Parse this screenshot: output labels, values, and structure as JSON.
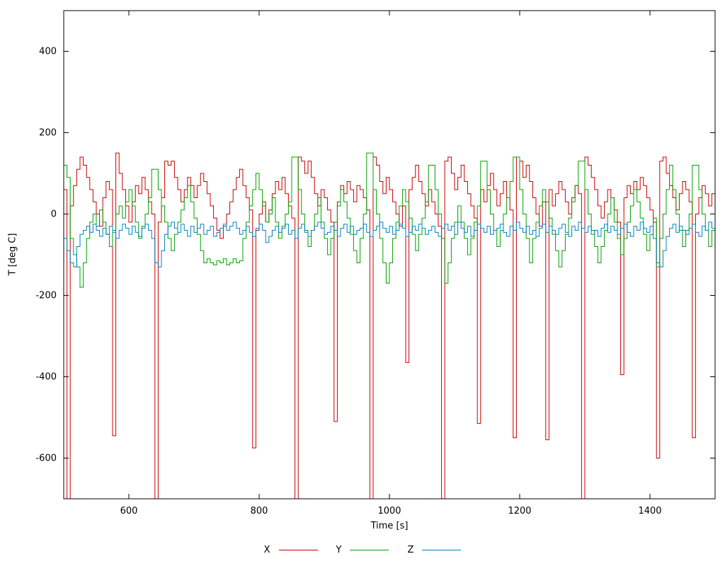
{
  "chart_data": {
    "type": "line",
    "style": "steps",
    "title": "",
    "xlabel": "Time [s]",
    "ylabel": "T [deg C]",
    "xlim": [
      500,
      1500
    ],
    "ylim": [
      -700,
      500
    ],
    "xticks": [
      600,
      800,
      1000,
      1200,
      1400
    ],
    "yticks": [
      -600,
      -400,
      -200,
      0,
      200,
      400
    ],
    "grid": false,
    "legend": {
      "position": "bottom",
      "entries": [
        "X",
        "Y",
        "Z"
      ]
    },
    "x_start": 500,
    "x_step": 5,
    "x_end": 1500,
    "series": [
      {
        "name": "X",
        "color": "#c80000",
        "values": [
          60,
          -750,
          20,
          70,
          110,
          140,
          120,
          90,
          60,
          30,
          0,
          -30,
          40,
          80,
          60,
          -545,
          150,
          100,
          60,
          20,
          -20,
          30,
          70,
          50,
          90,
          60,
          30,
          0,
          -750,
          -20,
          40,
          130,
          120,
          130,
          90,
          60,
          30,
          60,
          90,
          70,
          40,
          70,
          100,
          80,
          50,
          20,
          -10,
          -40,
          -60,
          -30,
          0,
          30,
          60,
          90,
          110,
          70,
          40,
          10,
          -575,
          -40,
          0,
          30,
          -20,
          10,
          50,
          80,
          60,
          90,
          50,
          20,
          -10,
          -750,
          140,
          130,
          100,
          130,
          90,
          50,
          20,
          60,
          40,
          10,
          -20,
          -510,
          30,
          70,
          50,
          80,
          60,
          30,
          70,
          60,
          40,
          10,
          -750,
          140,
          120,
          80,
          50,
          90,
          60,
          30,
          0,
          -30,
          20,
          -365,
          60,
          90,
          120,
          80,
          50,
          20,
          60,
          30,
          0,
          -30,
          -750,
          130,
          140,
          100,
          60,
          90,
          120,
          80,
          50,
          20,
          -10,
          -515,
          60,
          30,
          70,
          100,
          60,
          20,
          50,
          80,
          40,
          10,
          -550,
          140,
          130,
          90,
          120,
          80,
          40,
          0,
          -30,
          30,
          -555,
          60,
          20,
          50,
          80,
          60,
          30,
          0,
          40,
          70,
          50,
          -750,
          140,
          120,
          90,
          60,
          20,
          -10,
          30,
          60,
          40,
          10,
          -20,
          -395,
          40,
          70,
          50,
          80,
          60,
          90,
          70,
          40,
          10,
          -20,
          -600,
          130,
          140,
          100,
          70,
          40,
          10,
          50,
          80,
          60,
          30,
          -550,
          0,
          40,
          70,
          50,
          20,
          50,
          70
        ]
      },
      {
        "name": "Y",
        "color": "#00a000",
        "values": [
          120,
          90,
          -60,
          -100,
          -130,
          -180,
          -120,
          -60,
          -20,
          0,
          -30,
          10,
          -20,
          -50,
          -80,
          -40,
          0,
          20,
          -10,
          30,
          60,
          20,
          -20,
          -60,
          -30,
          0,
          40,
          110,
          110,
          60,
          20,
          -20,
          -60,
          -90,
          -50,
          -20,
          10,
          40,
          70,
          30,
          -10,
          -50,
          -90,
          -120,
          -110,
          -120,
          -125,
          -115,
          -120,
          -110,
          -125,
          -120,
          -110,
          -120,
          -115,
          -60,
          -20,
          20,
          60,
          100,
          60,
          20,
          -20,
          0,
          40,
          -20,
          -60,
          -30,
          0,
          30,
          140,
          140,
          60,
          0,
          -40,
          -80,
          -40,
          0,
          40,
          -20,
          -60,
          -100,
          -60,
          -20,
          20,
          60,
          30,
          -10,
          -50,
          -90,
          -120,
          -60,
          0,
          150,
          150,
          60,
          0,
          -60,
          -120,
          -170,
          -120,
          -60,
          -20,
          20,
          60,
          30,
          -10,
          -50,
          -90,
          -50,
          -10,
          30,
          120,
          120,
          60,
          0,
          -60,
          -170,
          -120,
          -60,
          -20,
          20,
          -20,
          -60,
          -100,
          -60,
          -20,
          20,
          130,
          130,
          60,
          0,
          -40,
          -80,
          -40,
          0,
          40,
          80,
          140,
          140,
          60,
          0,
          -60,
          -120,
          -60,
          -20,
          20,
          60,
          30,
          -10,
          -50,
          -90,
          -130,
          -90,
          -50,
          -10,
          30,
          70,
          130,
          130,
          60,
          0,
          -40,
          -80,
          -120,
          -80,
          -40,
          0,
          40,
          -20,
          -60,
          -100,
          -60,
          -20,
          20,
          60,
          30,
          -10,
          -50,
          -90,
          -50,
          -10,
          -130,
          -60,
          0,
          60,
          120,
          60,
          0,
          -40,
          -80,
          -40,
          0,
          120,
          120,
          60,
          0,
          -40,
          -80,
          -40,
          60
        ]
      },
      {
        "name": "Z",
        "color": "#0080c0",
        "values": [
          -60,
          -90,
          -120,
          -130,
          -80,
          -50,
          -40,
          -30,
          -45,
          -25,
          -40,
          -55,
          -35,
          -50,
          -30,
          -45,
          -60,
          -40,
          -25,
          -35,
          -50,
          -30,
          -45,
          -55,
          -35,
          -25,
          -40,
          -60,
          -120,
          -130,
          -90,
          -50,
          -30,
          -20,
          -35,
          -45,
          -25,
          -40,
          -55,
          -30,
          -45,
          -35,
          -25,
          -50,
          -40,
          -30,
          -55,
          -45,
          -35,
          -25,
          -40,
          -30,
          -20,
          -35,
          -50,
          -40,
          -30,
          -45,
          -55,
          -35,
          -25,
          -40,
          -70,
          -55,
          -40,
          -30,
          -45,
          -35,
          -25,
          -50,
          -40,
          -60,
          -35,
          -25,
          -45,
          -55,
          -40,
          -30,
          -20,
          -35,
          -50,
          -45,
          -30,
          -40,
          -55,
          -35,
          -25,
          -45,
          -30,
          -50,
          -40,
          -35,
          -25,
          -45,
          -55,
          -40,
          -30,
          -20,
          -35,
          -45,
          -30,
          -50,
          -40,
          -25,
          -35,
          -55,
          -45,
          -30,
          -40,
          -25,
          -35,
          -50,
          -40,
          -30,
          -45,
          -55,
          -35,
          -25,
          -40,
          -30,
          -50,
          -20,
          -35,
          -45,
          -30,
          -55,
          -40,
          -25,
          -35,
          -45,
          -30,
          -50,
          -40,
          -35,
          -25,
          -45,
          -55,
          -30,
          -40,
          -20,
          -35,
          -45,
          -30,
          -50,
          -40,
          -55,
          -35,
          -25,
          -45,
          -30,
          -40,
          -50,
          -35,
          -25,
          -45,
          -55,
          -30,
          -40,
          -20,
          -35,
          -45,
          -30,
          -50,
          -40,
          -55,
          -35,
          -25,
          -45,
          -30,
          -40,
          -50,
          -35,
          -25,
          -45,
          -55,
          -30,
          -40,
          -20,
          -35,
          -45,
          -30,
          -60,
          -120,
          -130,
          -90,
          -55,
          -35,
          -25,
          -45,
          -30,
          -40,
          -50,
          -35,
          -25,
          -45,
          -55,
          -30,
          -40,
          -20,
          -35,
          -30
        ]
      }
    ]
  }
}
